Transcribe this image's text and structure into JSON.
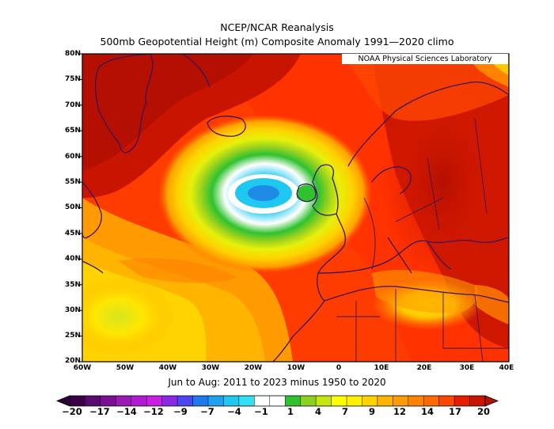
{
  "title": "NCEP/NCAR Reanalysis",
  "subtitle": "500mb Geopotential Height (m) Composite Anomaly 1991—2020 climo",
  "source_label": "NOAA Physical Sciences Laboratory",
  "period_label": "Jun to Aug: 2011 to 2023 minus 1950 to 2020",
  "map": {
    "region": "North Atlantic / Europe",
    "lon_range": [
      -60,
      40
    ],
    "lat_range": [
      20,
      80
    ],
    "lat_labels": [
      "80N",
      "75N",
      "70N",
      "65N",
      "60N",
      "55N",
      "50N",
      "45N",
      "40N",
      "35N",
      "30N",
      "25N",
      "20N"
    ],
    "lon_labels": [
      "60W",
      "50W",
      "40W",
      "30W",
      "20W",
      "10W",
      "0",
      "10E",
      "20E",
      "30E",
      "40E"
    ],
    "negative_anomaly_center": {
      "lon": -17,
      "lat": 52,
      "approx_value": -3
    },
    "positive_anomaly_areas": [
      "Greenland",
      "Western Europe",
      "Mediterranean",
      "Eastern Europe"
    ]
  },
  "colorbar": {
    "labels": [
      "−20",
      "−17",
      "−14",
      "−12",
      "−9",
      "−7",
      "−4",
      "−1",
      "1",
      "4",
      "7",
      "9",
      "12",
      "14",
      "17",
      "20"
    ],
    "colors": [
      "#3c0048",
      "#5a0a6e",
      "#7a0f96",
      "#9a1ab4",
      "#b21ad2",
      "#c81ee6",
      "#8a28e6",
      "#4a46f0",
      "#1e78f0",
      "#1ea0f0",
      "#1ec8f0",
      "#30e0f4",
      "#ffffff",
      "#ffffff",
      "#2fc22f",
      "#8ad21e",
      "#c6e60f",
      "#ffff00",
      "#fff000",
      "#ffd200",
      "#ffb400",
      "#ff9b00",
      "#ff8200",
      "#ff6a00",
      "#ff4600",
      "#e61e00",
      "#c81400"
    ],
    "under_color": "#2e0038",
    "over_color": "#b40f00"
  }
}
